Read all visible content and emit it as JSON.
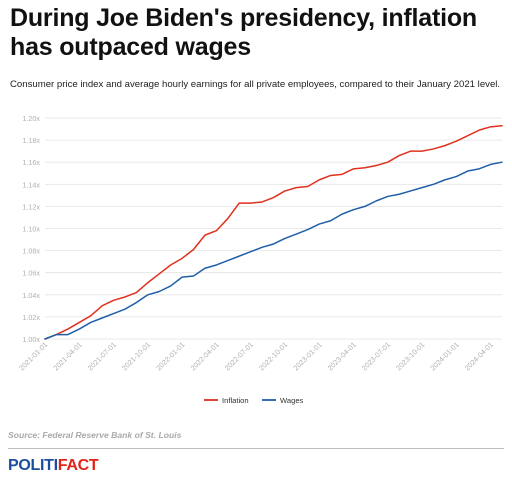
{
  "header": {
    "title": "During Joe Biden's presidency, inflation has outpaced wages",
    "subtitle": "Consumer price index and average hourly earnings for all private employees, compared to their January 2021 level."
  },
  "footer": {
    "source": "Source: Federal Reserve Bank of St. Louis",
    "logo_part1": "POLITI",
    "logo_part2": "FACT"
  },
  "colors": {
    "inflation": "#e0301e",
    "wages": "#1f5fa8",
    "grid": "#e3e3e3",
    "tick_text": "#b0b0b0",
    "logo_blue": "#1c4e9c",
    "logo_red": "#e2231a"
  },
  "chart_data": {
    "type": "line",
    "title": "",
    "xlabel": "",
    "ylabel": "",
    "ylim": [
      1.0,
      1.2
    ],
    "yticks": [
      "1.00x",
      "1.02x",
      "1.04x",
      "1.06x",
      "1.08x",
      "1.10x",
      "1.12x",
      "1.14x",
      "1.16x",
      "1.18x",
      "1.20x"
    ],
    "x_tick_labels": [
      "2021-01-01",
      "2021-04-01",
      "2021-07-01",
      "2021-10-01",
      "2022-01-01",
      "2022-04-01",
      "2022-07-01",
      "2022-10-01",
      "2023-01-01",
      "2023-04-01",
      "2023-07-01",
      "2023-10-01",
      "2024-01-01",
      "2024-04-01"
    ],
    "x": [
      "2021-01",
      "2021-02",
      "2021-03",
      "2021-04",
      "2021-05",
      "2021-06",
      "2021-07",
      "2021-08",
      "2021-09",
      "2021-10",
      "2021-11",
      "2021-12",
      "2022-01",
      "2022-02",
      "2022-03",
      "2022-04",
      "2022-05",
      "2022-06",
      "2022-07",
      "2022-08",
      "2022-09",
      "2022-10",
      "2022-11",
      "2022-12",
      "2023-01",
      "2023-02",
      "2023-03",
      "2023-04",
      "2023-05",
      "2023-06",
      "2023-07",
      "2023-08",
      "2023-09",
      "2023-10",
      "2023-11",
      "2023-12",
      "2024-01",
      "2024-02",
      "2024-03",
      "2024-04",
      "2024-05"
    ],
    "series": [
      {
        "name": "Inflation",
        "color": "#e0301e",
        "values": [
          1.0,
          1.004,
          1.009,
          1.015,
          1.021,
          1.03,
          1.035,
          1.038,
          1.042,
          1.051,
          1.059,
          1.067,
          1.073,
          1.081,
          1.094,
          1.098,
          1.109,
          1.123,
          1.123,
          1.124,
          1.128,
          1.134,
          1.137,
          1.138,
          1.144,
          1.148,
          1.149,
          1.154,
          1.155,
          1.157,
          1.16,
          1.166,
          1.17,
          1.17,
          1.172,
          1.175,
          1.179,
          1.184,
          1.189,
          1.192,
          1.193
        ]
      },
      {
        "name": "Wages",
        "color": "#1f5fa8",
        "values": [
          1.0,
          1.004,
          1.004,
          1.009,
          1.015,
          1.019,
          1.023,
          1.027,
          1.033,
          1.04,
          1.043,
          1.048,
          1.056,
          1.057,
          1.064,
          1.067,
          1.071,
          1.075,
          1.079,
          1.083,
          1.086,
          1.091,
          1.095,
          1.099,
          1.104,
          1.107,
          1.113,
          1.117,
          1.12,
          1.125,
          1.129,
          1.131,
          1.134,
          1.137,
          1.14,
          1.144,
          1.147,
          1.152,
          1.154,
          1.158,
          1.16
        ]
      }
    ],
    "legend_position": "bottom-center",
    "grid": true
  }
}
